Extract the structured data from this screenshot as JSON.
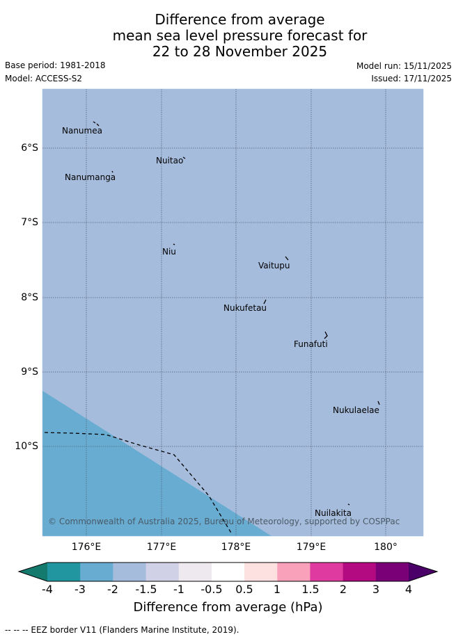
{
  "title": {
    "line1": "Difference from average",
    "line2": "mean sea level pressure forecast for",
    "line3": "22 to 28 November 2025"
  },
  "meta": {
    "base_period": "Base period: 1981-2018",
    "model": "Model: ACCESS-S2",
    "model_run": "Model run: 15/11/2025",
    "issued": "Issued: 17/11/2025"
  },
  "map": {
    "credit": "© Commonwealth of Australia 2025, Bureau of Meteorology, supported by COSPPac",
    "background_color": "#a6bcdc",
    "low_anomaly_color": "#68acd2",
    "longitude_labels": [
      "176°E",
      "177°E",
      "178°E",
      "179°E",
      "180°"
    ],
    "latitude_labels": [
      "6°S",
      "7°S",
      "8°S",
      "9°S",
      "10°S"
    ],
    "places": [
      {
        "name": "Nanumea"
      },
      {
        "name": "Nuitao"
      },
      {
        "name": "Nanumanga"
      },
      {
        "name": "Niu"
      },
      {
        "name": "Vaitupu"
      },
      {
        "name": "Nukufetau"
      },
      {
        "name": "Funafuti"
      },
      {
        "name": "Nukulaelae"
      },
      {
        "name": "Nuilakita"
      }
    ]
  },
  "legend": {
    "title": "Difference from average (hPa)",
    "tick_labels": [
      "-4",
      "-3",
      "-2",
      "-1.5",
      "-1",
      "-0.5",
      "0.5",
      "1",
      "1.5",
      "2",
      "3",
      "4"
    ],
    "colors": [
      "#157a6e",
      "#2196a0",
      "#68acd2",
      "#a6bcdc",
      "#d0d0e6",
      "#ede9ee",
      "#ffffff",
      "#fde0e0",
      "#f9a1ba",
      "#df3aa0",
      "#b30a82",
      "#7a0077",
      "#4a0068"
    ]
  },
  "footnote": "-- -- -- EEZ border V11 (Flanders Marine Institute, 2019)."
}
